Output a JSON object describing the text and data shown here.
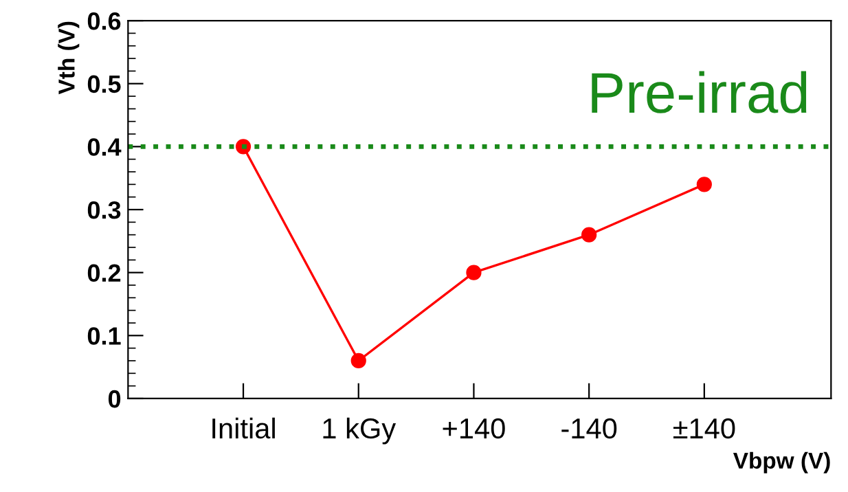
{
  "chart_data": {
    "type": "line",
    "xlabel": "Vbpw (V)",
    "ylabel": "Vth (V)",
    "categories": [
      "Initial",
      "1 kGy",
      "+140",
      "-140",
      "±140"
    ],
    "series": [
      {
        "color": "#ff0000",
        "values": [
          0.4,
          0.06,
          0.2,
          0.26,
          0.34
        ]
      }
    ],
    "marker": "circle",
    "line_style": "solid",
    "ylim": [
      0,
      0.6
    ],
    "yticks": [
      0,
      0.1,
      0.2,
      0.3,
      0.4,
      0.5,
      0.6
    ],
    "ref_lines": [
      {
        "axis": "y",
        "value": 0.4,
        "label": "Pre-irrad",
        "color": "#1a8a1a",
        "line_style": "dotted"
      }
    ],
    "grid": false,
    "legend": false
  }
}
